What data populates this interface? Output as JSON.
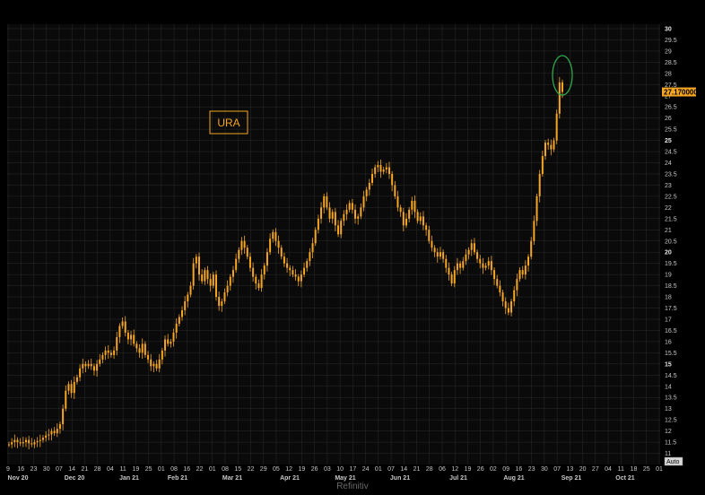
{
  "colors": {
    "background": "#000000",
    "panel": "#0a0a0a",
    "grid": "#2b2b2b",
    "candle": "#f5a623",
    "highlight_ellipse": "#2ea84a",
    "price_tag": "#f5a623"
  },
  "ticker_label": "URA",
  "source": "Refinitiv",
  "auto_button": "Auto",
  "last_price_label": "27.170000",
  "chart_data": {
    "type": "candlestick",
    "title": "",
    "ylim": [
      10.5,
      30.2
    ],
    "y_ticks": [
      "11",
      "11.5",
      "12",
      "12.5",
      "13",
      "13.5",
      "14",
      "14.5",
      "15",
      "15.5",
      "16",
      "16.5",
      "17",
      "17.5",
      "18",
      "18.5",
      "19",
      "19.5",
      "20",
      "20.5",
      "21",
      "21.5",
      "22",
      "22.5",
      "23",
      "23.5",
      "24",
      "24.5",
      "25",
      "25.5",
      "26",
      "26.5",
      "27",
      "27.5",
      "28",
      "28.5",
      "29",
      "29.5",
      "30"
    ],
    "y_major_ticks": [
      "15",
      "20",
      "25",
      "30"
    ],
    "x_day_ticks": [
      "9",
      "16",
      "23",
      "30",
      "07",
      "14",
      "21",
      "28",
      "04",
      "11",
      "19",
      "25",
      "01",
      "08",
      "16",
      "22",
      "01",
      "08",
      "15",
      "22",
      "29",
      "05",
      "12",
      "19",
      "26",
      "03",
      "10",
      "17",
      "24",
      "01",
      "07",
      "14",
      "21",
      "28",
      "06",
      "12",
      "19",
      "26",
      "02",
      "09",
      "16",
      "23",
      "30",
      "07",
      "13",
      "20",
      "27",
      "04",
      "11",
      "18",
      "25",
      "01"
    ],
    "x_month_labels": [
      "Nov 20",
      "Dec 20",
      "Jan 21",
      "Feb 21",
      "Mar 21",
      "Apr 21",
      "May 21",
      "Jun 21",
      "Jul 21",
      "Aug 21",
      "Sep 21",
      "Oct 21"
    ],
    "last_price": 27.17,
    "series": [
      {
        "values": [
          11.4,
          11.5,
          11.6,
          11.5,
          11.45,
          11.5,
          11.6,
          11.45,
          11.4,
          11.5,
          11.55,
          11.6,
          11.7,
          11.8,
          11.85,
          12.0,
          11.9,
          12.1,
          12.3,
          13.0,
          13.8,
          14.1,
          13.7,
          14.2,
          14.4,
          14.8,
          15.0,
          14.9,
          15.0,
          14.9,
          14.7,
          15.0,
          15.2,
          15.4,
          15.6,
          15.5,
          15.4,
          15.6,
          16.2,
          16.7,
          16.9,
          16.4,
          16.1,
          16.3,
          15.9,
          15.7,
          15.5,
          15.9,
          15.4,
          15.2,
          14.9,
          15.0,
          14.8,
          15.2,
          15.6,
          16.1,
          15.9,
          16.0,
          16.4,
          16.8,
          17.1,
          17.4,
          17.8,
          18.1,
          18.5,
          19.5,
          19.8,
          19.0,
          18.7,
          19.2,
          18.8,
          18.5,
          19.0,
          18.0,
          17.6,
          17.8,
          18.2,
          18.5,
          18.9,
          19.2,
          19.7,
          20.1,
          20.5,
          20.2,
          19.8,
          19.3,
          18.9,
          18.6,
          18.4,
          19.0,
          19.4,
          20.0,
          20.6,
          20.9,
          20.5,
          20.2,
          19.8,
          19.5,
          19.3,
          19.2,
          19.0,
          18.9,
          18.7,
          19.0,
          19.3,
          19.6,
          20.0,
          20.4,
          21.0,
          21.5,
          22.0,
          22.5,
          22.0,
          21.5,
          21.8,
          21.2,
          20.8,
          21.4,
          21.7,
          21.9,
          22.2,
          21.9,
          21.5,
          21.6,
          22.0,
          22.5,
          22.8,
          23.1,
          23.5,
          23.8,
          23.9,
          23.6,
          23.7,
          23.8,
          23.5,
          23.0,
          22.5,
          22.0,
          21.8,
          21.2,
          21.5,
          21.9,
          22.3,
          21.8,
          21.4,
          21.6,
          21.2,
          21.0,
          20.5,
          20.2,
          20.0,
          19.8,
          20.0,
          19.7,
          19.3,
          19.0,
          18.6,
          19.2,
          19.5,
          19.3,
          19.6,
          19.9,
          20.1,
          20.4,
          20.0,
          19.7,
          19.5,
          19.3,
          19.4,
          19.6,
          19.2,
          18.8,
          18.5,
          18.2,
          17.8,
          17.5,
          17.3,
          17.8,
          18.3,
          18.8,
          19.2,
          19.0,
          19.4,
          19.8,
          20.5,
          21.4,
          22.5,
          23.5,
          24.3,
          24.9,
          24.8,
          24.6,
          25.0,
          26.2,
          27.6,
          27.17
        ]
      }
    ]
  }
}
